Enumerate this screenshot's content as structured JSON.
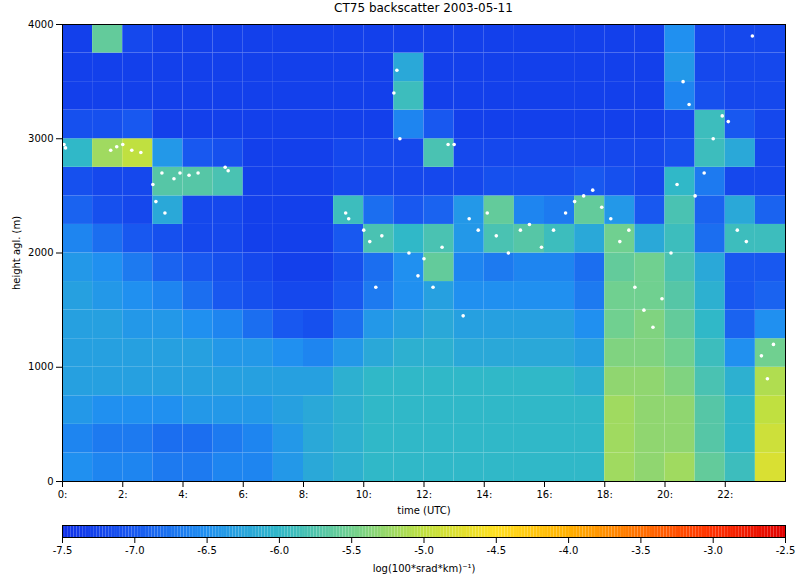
{
  "chart_data": {
    "type": "heatmap",
    "title": "CT75 backscatter 2003-05-11",
    "x_label": "time (UTC)",
    "y_label": "height agl. (m)",
    "xlim": [
      0,
      24
    ],
    "xticks": [
      {
        "value": 0,
        "label": "0:"
      },
      {
        "value": 2,
        "label": "2:"
      },
      {
        "value": 4,
        "label": "4:"
      },
      {
        "value": 6,
        "label": "6:"
      },
      {
        "value": 8,
        "label": "8:"
      },
      {
        "value": 10,
        "label": "10:"
      },
      {
        "value": 12,
        "label": "12:"
      },
      {
        "value": 14,
        "label": "14:"
      },
      {
        "value": 16,
        "label": "16:"
      },
      {
        "value": 18,
        "label": "18:"
      },
      {
        "value": 20,
        "label": "20:"
      },
      {
        "value": 22,
        "label": "22:"
      }
    ],
    "ylim": [
      0,
      4000
    ],
    "yticks": [
      0,
      1000,
      2000,
      3000,
      4000
    ],
    "x_edges": [
      0,
      1,
      2,
      3,
      4,
      5,
      6,
      7,
      8,
      9,
      10,
      11,
      12,
      13,
      14,
      15,
      16,
      17,
      18,
      19,
      20,
      21,
      22,
      23,
      24
    ],
    "y_edges": [
      0,
      250,
      500,
      750,
      1000,
      1250,
      1500,
      1750,
      2000,
      2250,
      2500,
      2750,
      3000,
      3250,
      3500,
      3750,
      4000
    ],
    "values": [
      [
        -6.5,
        -6.6,
        -6.6,
        -6.7,
        -6.7,
        -6.6,
        -6.6,
        -6.4,
        -6.2,
        -6.1,
        -6.0,
        -6.0,
        -6.0,
        -6.0,
        -6.0,
        -6.0,
        -6.0,
        -6.0,
        -5.2,
        -5.3,
        -5.2,
        -5.6,
        -5.9,
        -4.8
      ],
      [
        -6.6,
        -6.7,
        -6.7,
        -6.8,
        -6.8,
        -6.7,
        -6.6,
        -6.4,
        -6.2,
        -6.1,
        -6.0,
        -6.0,
        -6.0,
        -6.0,
        -6.0,
        -6.0,
        -6.0,
        -6.0,
        -5.2,
        -5.3,
        -5.3,
        -5.7,
        -6.0,
        -4.9
      ],
      [
        -6.4,
        -6.5,
        -6.5,
        -6.5,
        -6.4,
        -6.4,
        -6.4,
        -6.3,
        -6.2,
        -6.1,
        -6.0,
        -6.0,
        -6.0,
        -6.0,
        -6.0,
        -6.0,
        -6.0,
        -6.0,
        -5.2,
        -5.3,
        -5.3,
        -5.7,
        -6.0,
        -5.0
      ],
      [
        -6.3,
        -6.3,
        -6.3,
        -6.3,
        -6.3,
        -6.3,
        -6.3,
        -6.3,
        -6.3,
        -6.1,
        -6.0,
        -6.0,
        -6.0,
        -6.0,
        -6.0,
        -6.0,
        -6.0,
        -6.1,
        -5.3,
        -5.3,
        -5.4,
        -5.8,
        -6.1,
        -5.1
      ],
      [
        -6.3,
        -6.3,
        -6.3,
        -6.3,
        -6.3,
        -6.4,
        -6.4,
        -6.5,
        -6.6,
        -6.4,
        -6.2,
        -6.1,
        -6.1,
        -6.2,
        -6.2,
        -6.2,
        -6.2,
        -6.3,
        -5.4,
        -5.4,
        -5.5,
        -5.9,
        -6.5,
        -5.5
      ],
      [
        -6.3,
        -6.3,
        -6.4,
        -6.4,
        -6.5,
        -6.6,
        -6.8,
        -7.0,
        -7.1,
        -6.8,
        -6.4,
        -6.3,
        -6.2,
        -6.3,
        -6.3,
        -6.3,
        -6.3,
        -6.5,
        -5.5,
        -5.4,
        -5.6,
        -6.0,
        -6.9,
        -6.5
      ],
      [
        -6.3,
        -6.4,
        -6.5,
        -6.6,
        -6.8,
        -7.0,
        -7.1,
        -7.2,
        -7.2,
        -7.0,
        -6.7,
        -6.5,
        -6.3,
        -6.5,
        -6.5,
        -6.5,
        -6.5,
        -6.7,
        -5.5,
        -5.5,
        -5.7,
        -6.1,
        -7.0,
        -6.9
      ],
      [
        -6.4,
        -6.5,
        -6.7,
        -6.9,
        -7.0,
        -7.1,
        -7.2,
        -7.3,
        -7.3,
        -7.1,
        -6.8,
        -6.5,
        -5.6,
        -6.6,
        -6.7,
        -6.6,
        -6.6,
        -6.8,
        -5.6,
        -5.5,
        -5.8,
        -6.2,
        -7.0,
        -7.0
      ],
      [
        -6.6,
        -6.8,
        -7.0,
        -7.1,
        -7.2,
        -7.2,
        -7.3,
        -7.3,
        -7.3,
        -7.0,
        -5.8,
        -6.0,
        -5.8,
        -6.4,
        -5.8,
        -5.7,
        -5.9,
        -6.2,
        -5.5,
        -6.2,
        -5.9,
        -6.8,
        -5.9,
        -5.9
      ],
      [
        -6.9,
        -7.1,
        -7.2,
        -6.2,
        -7.2,
        -7.2,
        -7.3,
        -7.3,
        -7.3,
        -5.9,
        -6.8,
        -7.0,
        -6.9,
        -6.4,
        -5.6,
        -6.6,
        -6.7,
        -5.6,
        -6.4,
        -7.0,
        -5.8,
        -6.9,
        -6.2,
        -6.9
      ],
      [
        -7.1,
        -7.2,
        -7.2,
        -5.7,
        -5.7,
        -5.8,
        -7.3,
        -7.3,
        -7.3,
        -7.2,
        -7.2,
        -7.2,
        -7.2,
        -7.2,
        -7.1,
        -7.1,
        -7.1,
        -7.0,
        -7.1,
        -7.2,
        -6.0,
        -6.7,
        -7.2,
        -7.2
      ],
      [
        -6.0,
        -5.2,
        -5.0,
        -6.4,
        -7.0,
        -7.1,
        -7.3,
        -7.3,
        -7.3,
        -7.2,
        -7.2,
        -7.2,
        -5.8,
        -7.2,
        -7.2,
        -7.2,
        -7.2,
        -7.2,
        -7.2,
        -7.2,
        -7.1,
        -5.9,
        -6.2,
        -7.2
      ],
      [
        -7.1,
        -7.1,
        -7.0,
        -7.3,
        -7.3,
        -7.3,
        -7.3,
        -7.3,
        -7.3,
        -7.3,
        -7.3,
        -6.6,
        -7.0,
        -7.3,
        -7.3,
        -7.3,
        -7.3,
        -7.3,
        -7.3,
        -7.3,
        -7.2,
        -5.9,
        -7.0,
        -7.2
      ],
      [
        -7.3,
        -7.3,
        -7.3,
        -7.3,
        -7.3,
        -7.3,
        -7.3,
        -7.3,
        -7.3,
        -7.3,
        -7.3,
        -5.9,
        -7.3,
        -7.3,
        -7.3,
        -7.3,
        -7.3,
        -7.3,
        -7.3,
        -7.3,
        -6.6,
        -7.1,
        -7.2,
        -7.2
      ],
      [
        -7.3,
        -7.3,
        -7.3,
        -7.3,
        -7.3,
        -7.3,
        -7.3,
        -7.3,
        -7.3,
        -7.3,
        -7.3,
        -6.2,
        -7.3,
        -7.3,
        -7.3,
        -7.3,
        -7.3,
        -7.3,
        -7.3,
        -7.3,
        -6.4,
        -7.2,
        -7.2,
        -7.2
      ],
      [
        -7.3,
        -5.6,
        -7.2,
        -7.3,
        -7.3,
        -7.3,
        -7.3,
        -7.3,
        -7.3,
        -7.3,
        -7.3,
        -7.3,
        -7.3,
        -7.3,
        -7.3,
        -7.3,
        -7.3,
        -7.3,
        -7.3,
        -7.3,
        -6.5,
        -7.2,
        -7.2,
        -7.2
      ]
    ],
    "colorbar": {
      "label": "log(100*srad*km)⁻¹)",
      "range": [
        -7.5,
        -2.5
      ],
      "ticks": [
        -7.5,
        {
          "value": -7,
          "label": "-7.0"
        },
        -6.5,
        {
          "value": -6,
          "label": "-6.0"
        },
        -5.5,
        {
          "value": -5,
          "label": "-5.0"
        },
        -4.5,
        {
          "value": -4,
          "label": "-4.0"
        },
        -3.5,
        {
          "value": -3,
          "label": "-3.0"
        },
        -2.5
      ]
    },
    "cloud_base": {
      "color": "#ffffff",
      "marker": "circle",
      "x": [
        0.05,
        0.1,
        1.6,
        1.8,
        2.0,
        2.3,
        2.6,
        3.0,
        3.1,
        3.3,
        3.4,
        3.7,
        3.9,
        4.2,
        4.5,
        5.4,
        5.5,
        9.4,
        9.5,
        10.0,
        10.2,
        10.4,
        10.6,
        11.0,
        11.1,
        11.2,
        11.5,
        11.8,
        12.0,
        12.3,
        12.6,
        12.8,
        13.0,
        13.3,
        13.5,
        13.8,
        14.1,
        14.4,
        14.8,
        15.2,
        15.5,
        15.9,
        16.3,
        16.7,
        17.0,
        17.3,
        17.6,
        17.9,
        18.2,
        18.5,
        18.8,
        19.0,
        19.3,
        19.6,
        19.9,
        20.2,
        20.4,
        20.6,
        20.8,
        21.0,
        21.3,
        21.6,
        21.9,
        22.1,
        22.4,
        22.7,
        22.9,
        23.2,
        23.4,
        23.6
      ],
      "y": [
        2950,
        2920,
        2900,
        2930,
        2950,
        2900,
        2880,
        2600,
        2450,
        2700,
        2350,
        2650,
        2700,
        2680,
        2700,
        2750,
        2720,
        2350,
        2300,
        2200,
        2100,
        1700,
        2150,
        3400,
        3600,
        3000,
        2000,
        1800,
        1950,
        1700,
        2050,
        2950,
        2950,
        1450,
        2300,
        2200,
        2350,
        2150,
        2000,
        2200,
        2250,
        2050,
        2200,
        2350,
        2450,
        2500,
        2550,
        2400,
        2300,
        2100,
        2200,
        1700,
        1500,
        1350,
        1600,
        2000,
        2600,
        3500,
        3300,
        2500,
        2700,
        3000,
        3200,
        3150,
        2200,
        2100,
        3900,
        1100,
        900,
        1200
      ]
    }
  }
}
